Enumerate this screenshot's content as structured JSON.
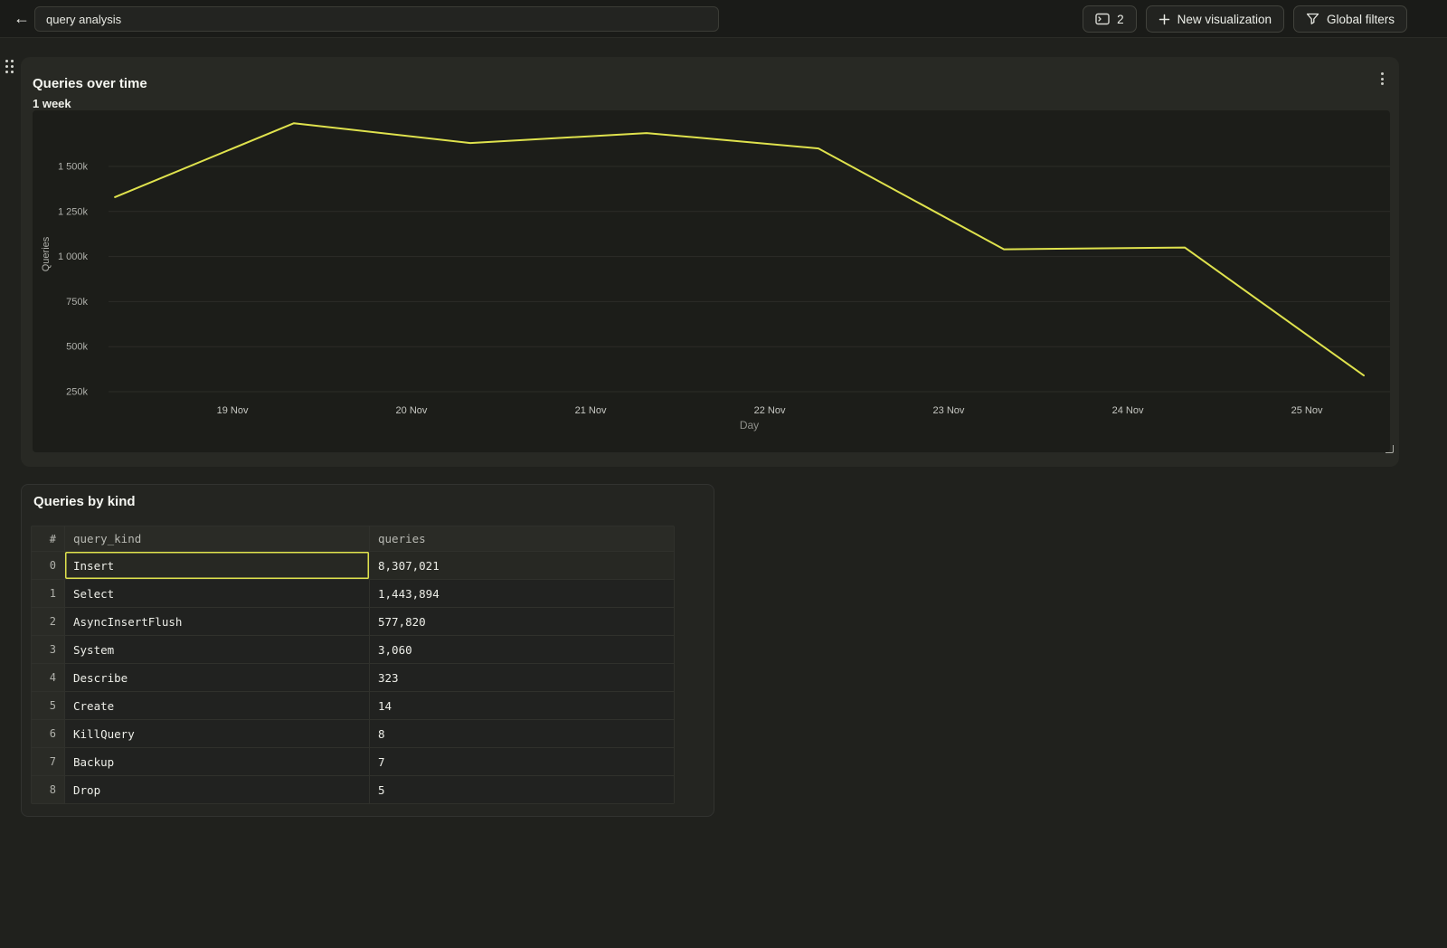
{
  "topbar": {
    "back_icon": "arrow-left",
    "title_value": "query analysis",
    "tab_count_label": "2",
    "new_viz_label": "New visualization",
    "global_filters_label": "Global filters"
  },
  "chart_panel": {
    "title": "Queries over time",
    "subtitle": "1 week"
  },
  "chart_data": {
    "type": "line",
    "title": "Queries over time",
    "subtitle": "1 week",
    "xlabel": "Day",
    "ylabel": "Queries",
    "grid": "horizontal-only",
    "legend": "none",
    "line_color": "#dfe24d",
    "y_ticks": [
      {
        "v": 250,
        "label": "250k"
      },
      {
        "v": 500,
        "label": "500k"
      },
      {
        "v": 750,
        "label": "750k"
      },
      {
        "v": 1000,
        "label": "1 000k"
      },
      {
        "v": 1250,
        "label": "1 250k"
      },
      {
        "v": 1500,
        "label": "1 500k"
      }
    ],
    "y_units": "thousands of queries",
    "x_ticks": [
      {
        "f": 0.0967,
        "label": "19 Nov"
      },
      {
        "f": 0.2364,
        "label": "20 Nov"
      },
      {
        "f": 0.3762,
        "label": "21 Nov"
      },
      {
        "f": 0.5159,
        "label": "22 Nov"
      },
      {
        "f": 0.6556,
        "label": "23 Nov"
      },
      {
        "f": 0.7954,
        "label": "24 Nov"
      },
      {
        "f": 0.9351,
        "label": "25 Nov"
      }
    ],
    "series": [
      {
        "name": "Queries",
        "points": [
          {
            "f": 0.005,
            "v_k": 1330
          },
          {
            "f": 0.1447,
            "v_k": 1740
          },
          {
            "f": 0.2823,
            "v_k": 1630
          },
          {
            "f": 0.4199,
            "v_k": 1685
          },
          {
            "f": 0.554,
            "v_k": 1600
          },
          {
            "f": 0.6987,
            "v_k": 1040
          },
          {
            "f": 0.8398,
            "v_k": 1050
          },
          {
            "f": 0.9795,
            "v_k": 340
          }
        ]
      }
    ],
    "approx_daily_values_k": {
      "18 Nov": 1330,
      "19 Nov": 1740,
      "20 Nov": 1630,
      "21 Nov": 1685,
      "22 Nov": 1600,
      "23 Nov": 1040,
      "24 Nov": 1050,
      "25 Nov": 340
    }
  },
  "table_panel": {
    "title": "Queries by kind",
    "columns": [
      "#",
      "query_kind",
      "queries"
    ],
    "rows": [
      {
        "idx": "0",
        "kind": "Insert",
        "queries": "8,307,021",
        "selected": true
      },
      {
        "idx": "1",
        "kind": "Select",
        "queries": "1,443,894",
        "selected": false
      },
      {
        "idx": "2",
        "kind": "AsyncInsertFlush",
        "queries": "577,820",
        "selected": false
      },
      {
        "idx": "3",
        "kind": "System",
        "queries": "3,060",
        "selected": false
      },
      {
        "idx": "4",
        "kind": "Describe",
        "queries": "323",
        "selected": false
      },
      {
        "idx": "5",
        "kind": "Create",
        "queries": "14",
        "selected": false
      },
      {
        "idx": "6",
        "kind": "KillQuery",
        "queries": "8",
        "selected": false
      },
      {
        "idx": "7",
        "kind": "Backup",
        "queries": "7",
        "selected": false
      },
      {
        "idx": "8",
        "kind": "Drop",
        "queries": "5",
        "selected": false
      }
    ]
  },
  "colors": {
    "accent_yellow": "#dfe24d",
    "page_bg": "#20211d",
    "panel_bg": "#282924",
    "plot_bg": "#1c1d19"
  }
}
